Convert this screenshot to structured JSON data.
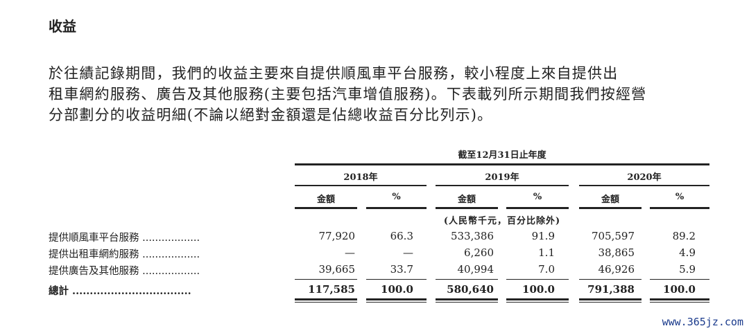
{
  "section_title": "收益",
  "paragraph_lines": [
    "於往績記錄期間，我們的收益主要來自提供順風車平台服務，較小程度上來自提供出",
    "租車網約服務、廣告及其他服務(主要包括汽車增值服務)。下表載列所示期間我們按經營",
    "分部劃分的收益明細(不論以絕對金額還是佔總收益百分比列示)。"
  ],
  "table": {
    "period_header": "截至12月31日止年度",
    "years": [
      "2018年",
      "2019年",
      "2020年"
    ],
    "sub_headers": {
      "amount": "金額",
      "percent": "%"
    },
    "unit_note": "(人民幣千元，百分比除外)",
    "rows": [
      {
        "label": "提供順風車平台服務 ..................",
        "values": [
          "77,920",
          "66.3",
          "533,386",
          "91.9",
          "705,597",
          "89.2"
        ]
      },
      {
        "label": "提供出租車網約服務 ..................",
        "values": [
          "—",
          "—",
          "6,260",
          "1.1",
          "38,865",
          "4.9"
        ]
      },
      {
        "label": "提供廣告及其他服務 ..................",
        "values": [
          "39,665",
          "33.7",
          "40,994",
          "7.0",
          "46,926",
          "5.9"
        ]
      }
    ],
    "total": {
      "label": "總計 ..................................",
      "values": [
        "117,585",
        "100.0",
        "580,640",
        "100.0",
        "791,388",
        "100.0"
      ]
    }
  },
  "watermark": "www.365jz.com"
}
